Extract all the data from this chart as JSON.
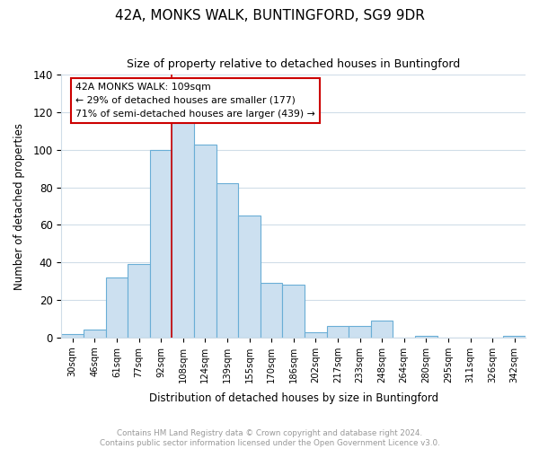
{
  "title1": "42A, MONKS WALK, BUNTINGFORD, SG9 9DR",
  "title2": "Size of property relative to detached houses in Buntingford",
  "xlabel": "Distribution of detached houses by size in Buntingford",
  "ylabel": "Number of detached properties",
  "categories": [
    "30sqm",
    "46sqm",
    "61sqm",
    "77sqm",
    "92sqm",
    "108sqm",
    "124sqm",
    "139sqm",
    "155sqm",
    "170sqm",
    "186sqm",
    "202sqm",
    "217sqm",
    "233sqm",
    "248sqm",
    "264sqm",
    "280sqm",
    "295sqm",
    "311sqm",
    "326sqm",
    "342sqm"
  ],
  "values": [
    2,
    4,
    32,
    39,
    100,
    119,
    103,
    82,
    65,
    29,
    28,
    3,
    6,
    6,
    9,
    0,
    1,
    0,
    0,
    0,
    1
  ],
  "bar_color": "#cce0f0",
  "bar_edge_color": "#6aaed6",
  "highlight_line_index": 5,
  "highlight_line_color": "#cc0000",
  "annotation_text": "42A MONKS WALK: 109sqm\n← 29% of detached houses are smaller (177)\n71% of semi-detached houses are larger (439) →",
  "annotation_box_edge_color": "#cc0000",
  "annotation_box_face_color": "#ffffff",
  "ylim": [
    0,
    140
  ],
  "yticks": [
    0,
    20,
    40,
    60,
    80,
    100,
    120,
    140
  ],
  "footer_text": "Contains HM Land Registry data © Crown copyright and database right 2024.\nContains public sector information licensed under the Open Government Licence v3.0.",
  "footer_color": "#999999",
  "background_color": "#ffffff",
  "grid_color": "#d0dde8"
}
